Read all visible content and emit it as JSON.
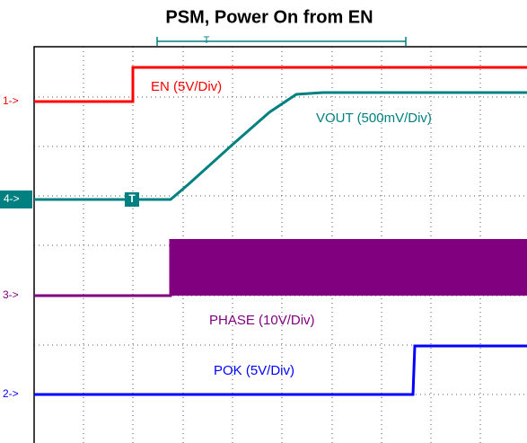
{
  "header": {
    "title": "PSM, Power On from EN"
  },
  "trigger": {
    "top_marker": "T",
    "trace_marker": "T"
  },
  "channels": [
    {
      "marker": "1->",
      "label": "EN (5V/Div)"
    },
    {
      "marker": "4->",
      "label": "VOUT (500mV/Div)"
    },
    {
      "marker": "3->",
      "label": "PHASE  (10V/Div)"
    },
    {
      "marker": "2->",
      "label": "POK (5V/Div)"
    }
  ]
}
